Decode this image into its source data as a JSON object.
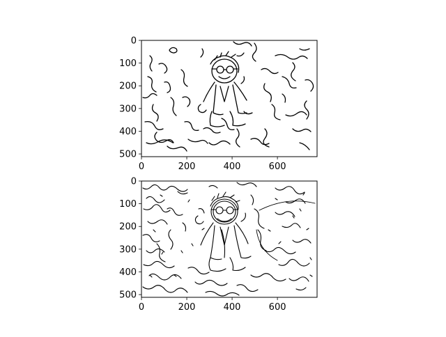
{
  "figure": {
    "background": "#ffffff",
    "ink": "#000000"
  },
  "chart_data": [
    {
      "type": "image",
      "content": "edge map (sigma low) of cartoon boy with glasses on textured background",
      "xlim": [
        0,
        775
      ],
      "ylim": [
        512,
        0
      ],
      "xticks": [
        0,
        200,
        400,
        600
      ],
      "yticks": [
        0,
        100,
        200,
        300,
        400,
        500
      ],
      "xtick_labels": [
        "0",
        "200",
        "400",
        "600"
      ],
      "ytick_labels": [
        "0",
        "100",
        "200",
        "300",
        "400",
        "500"
      ],
      "title": "",
      "xlabel": "",
      "ylabel": "",
      "grid": false
    },
    {
      "type": "image",
      "content": "edge map (sigma high) of cartoon boy with glasses on textured background",
      "xlim": [
        0,
        775
      ],
      "ylim": [
        512,
        0
      ],
      "xticks": [
        0,
        200,
        400,
        600
      ],
      "yticks": [
        0,
        100,
        200,
        300,
        400,
        500
      ],
      "xtick_labels": [
        "0",
        "200",
        "400",
        "600"
      ],
      "ytick_labels": [
        "0",
        "100",
        "200",
        "300",
        "400",
        "500"
      ],
      "title": "",
      "xlabel": "",
      "ylabel": "",
      "grid": false
    }
  ]
}
